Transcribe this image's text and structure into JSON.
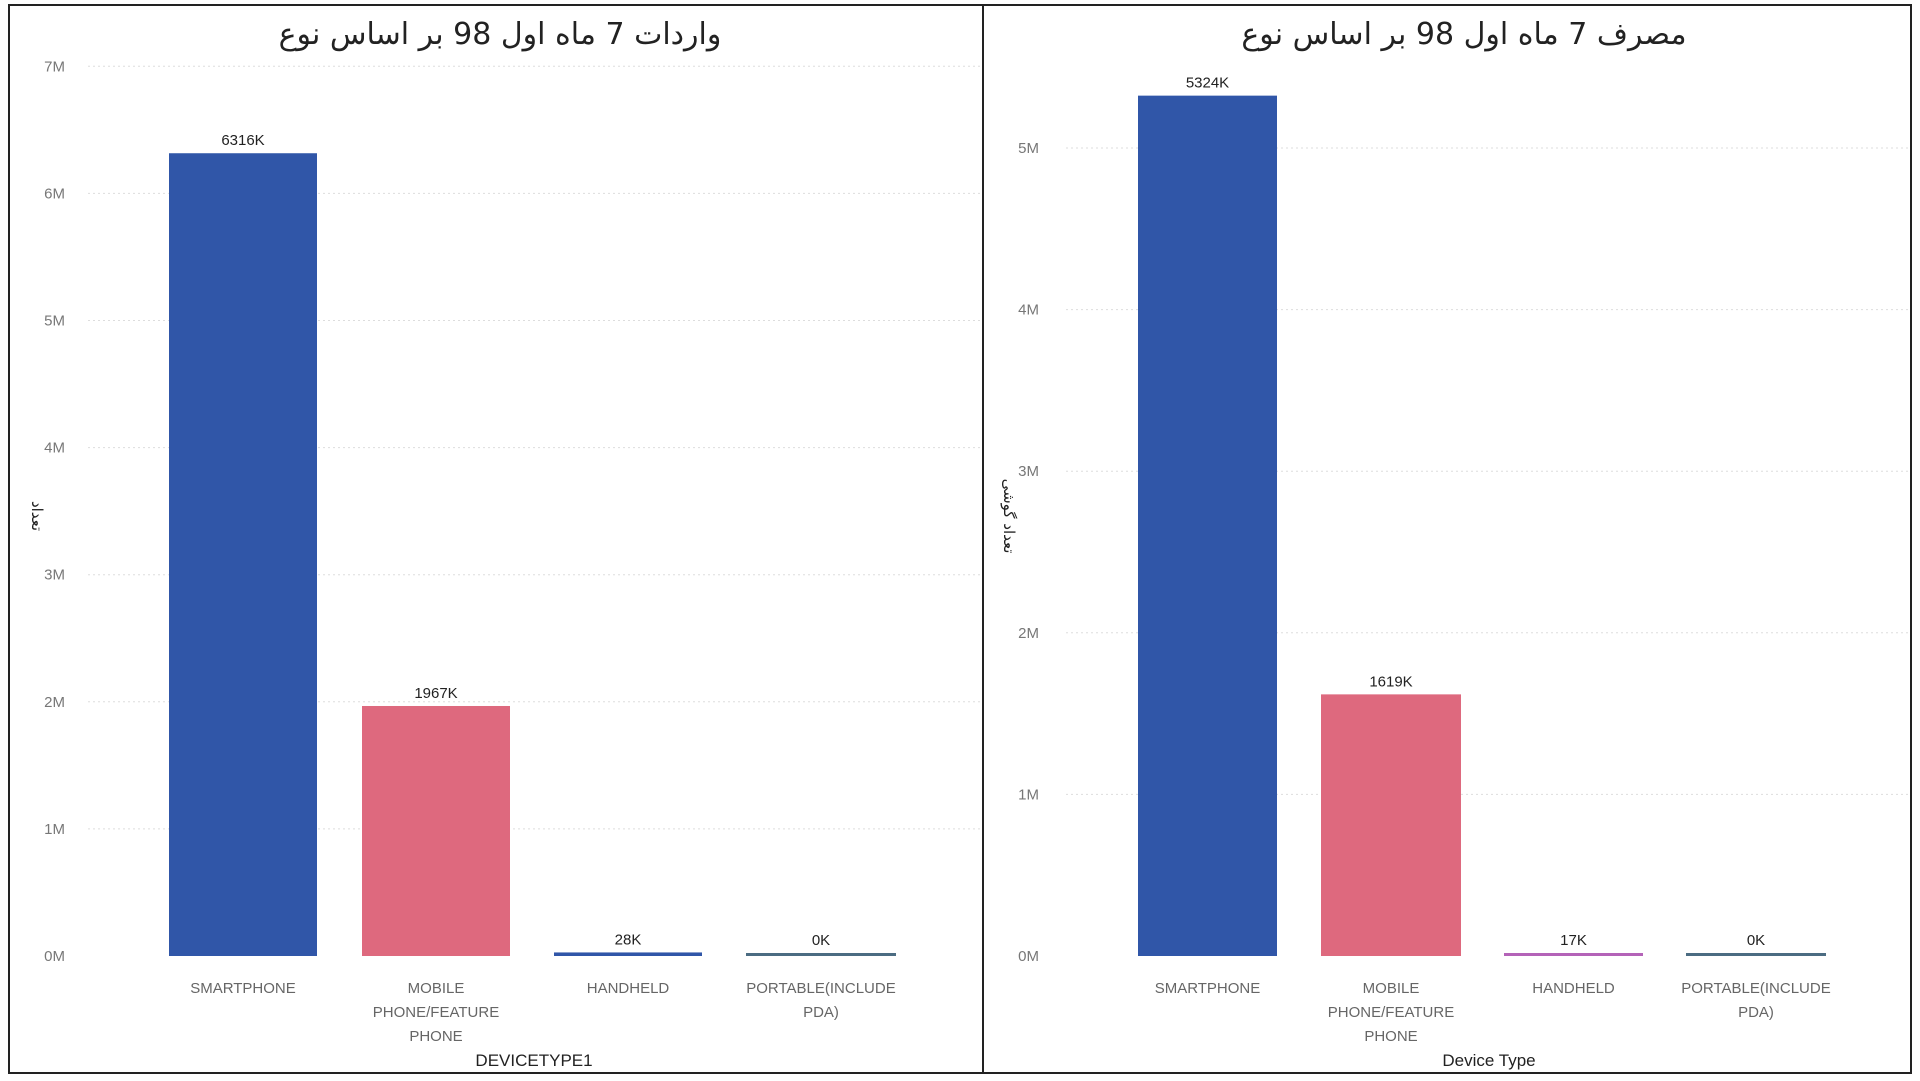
{
  "chart_data": [
    {
      "type": "bar",
      "title": "واردات 7 ماه اول 98 بر اساس نوع",
      "xlabel": "DEVICETYPE1",
      "ylabel": "تعداد",
      "ylim": [
        0,
        7000000
      ],
      "yticks": [
        "0M",
        "1M",
        "2M",
        "3M",
        "4M",
        "5M",
        "6M",
        "7M"
      ],
      "grid": true,
      "categories": [
        [
          "SMARTPHONE"
        ],
        [
          "MOBILE",
          "PHONE/FEATURE",
          "PHONE"
        ],
        [
          "HANDHELD"
        ],
        [
          "PORTABLE(INCLUDE",
          "PDA)"
        ]
      ],
      "values": [
        6316000,
        1967000,
        28000,
        0
      ],
      "data_labels": [
        "6316K",
        "1967K",
        "28K",
        "0K"
      ],
      "colors": [
        "#3056a8",
        "#de697e",
        "#3056a8",
        "#4b6c82"
      ]
    },
    {
      "type": "bar",
      "title": "مصرف 7 ماه اول 98 بر اساس نوع",
      "xlabel": "Device Type",
      "ylabel": "تعداد گوشی",
      "ylim": [
        0,
        5500000
      ],
      "yticks": [
        "0M",
        "1M",
        "2M",
        "3M",
        "4M",
        "5M"
      ],
      "grid": true,
      "categories": [
        [
          "SMARTPHONE"
        ],
        [
          "MOBILE",
          "PHONE/FEATURE",
          "PHONE"
        ],
        [
          "HANDHELD"
        ],
        [
          "PORTABLE(INCLUDE",
          "PDA)"
        ]
      ],
      "values": [
        5324000,
        1619000,
        17000,
        0
      ],
      "data_labels": [
        "5324K",
        "1619K",
        "17K",
        "0K"
      ],
      "colors": [
        "#3056a8",
        "#de697e",
        "#b463b8",
        "#4b6c82"
      ]
    }
  ]
}
